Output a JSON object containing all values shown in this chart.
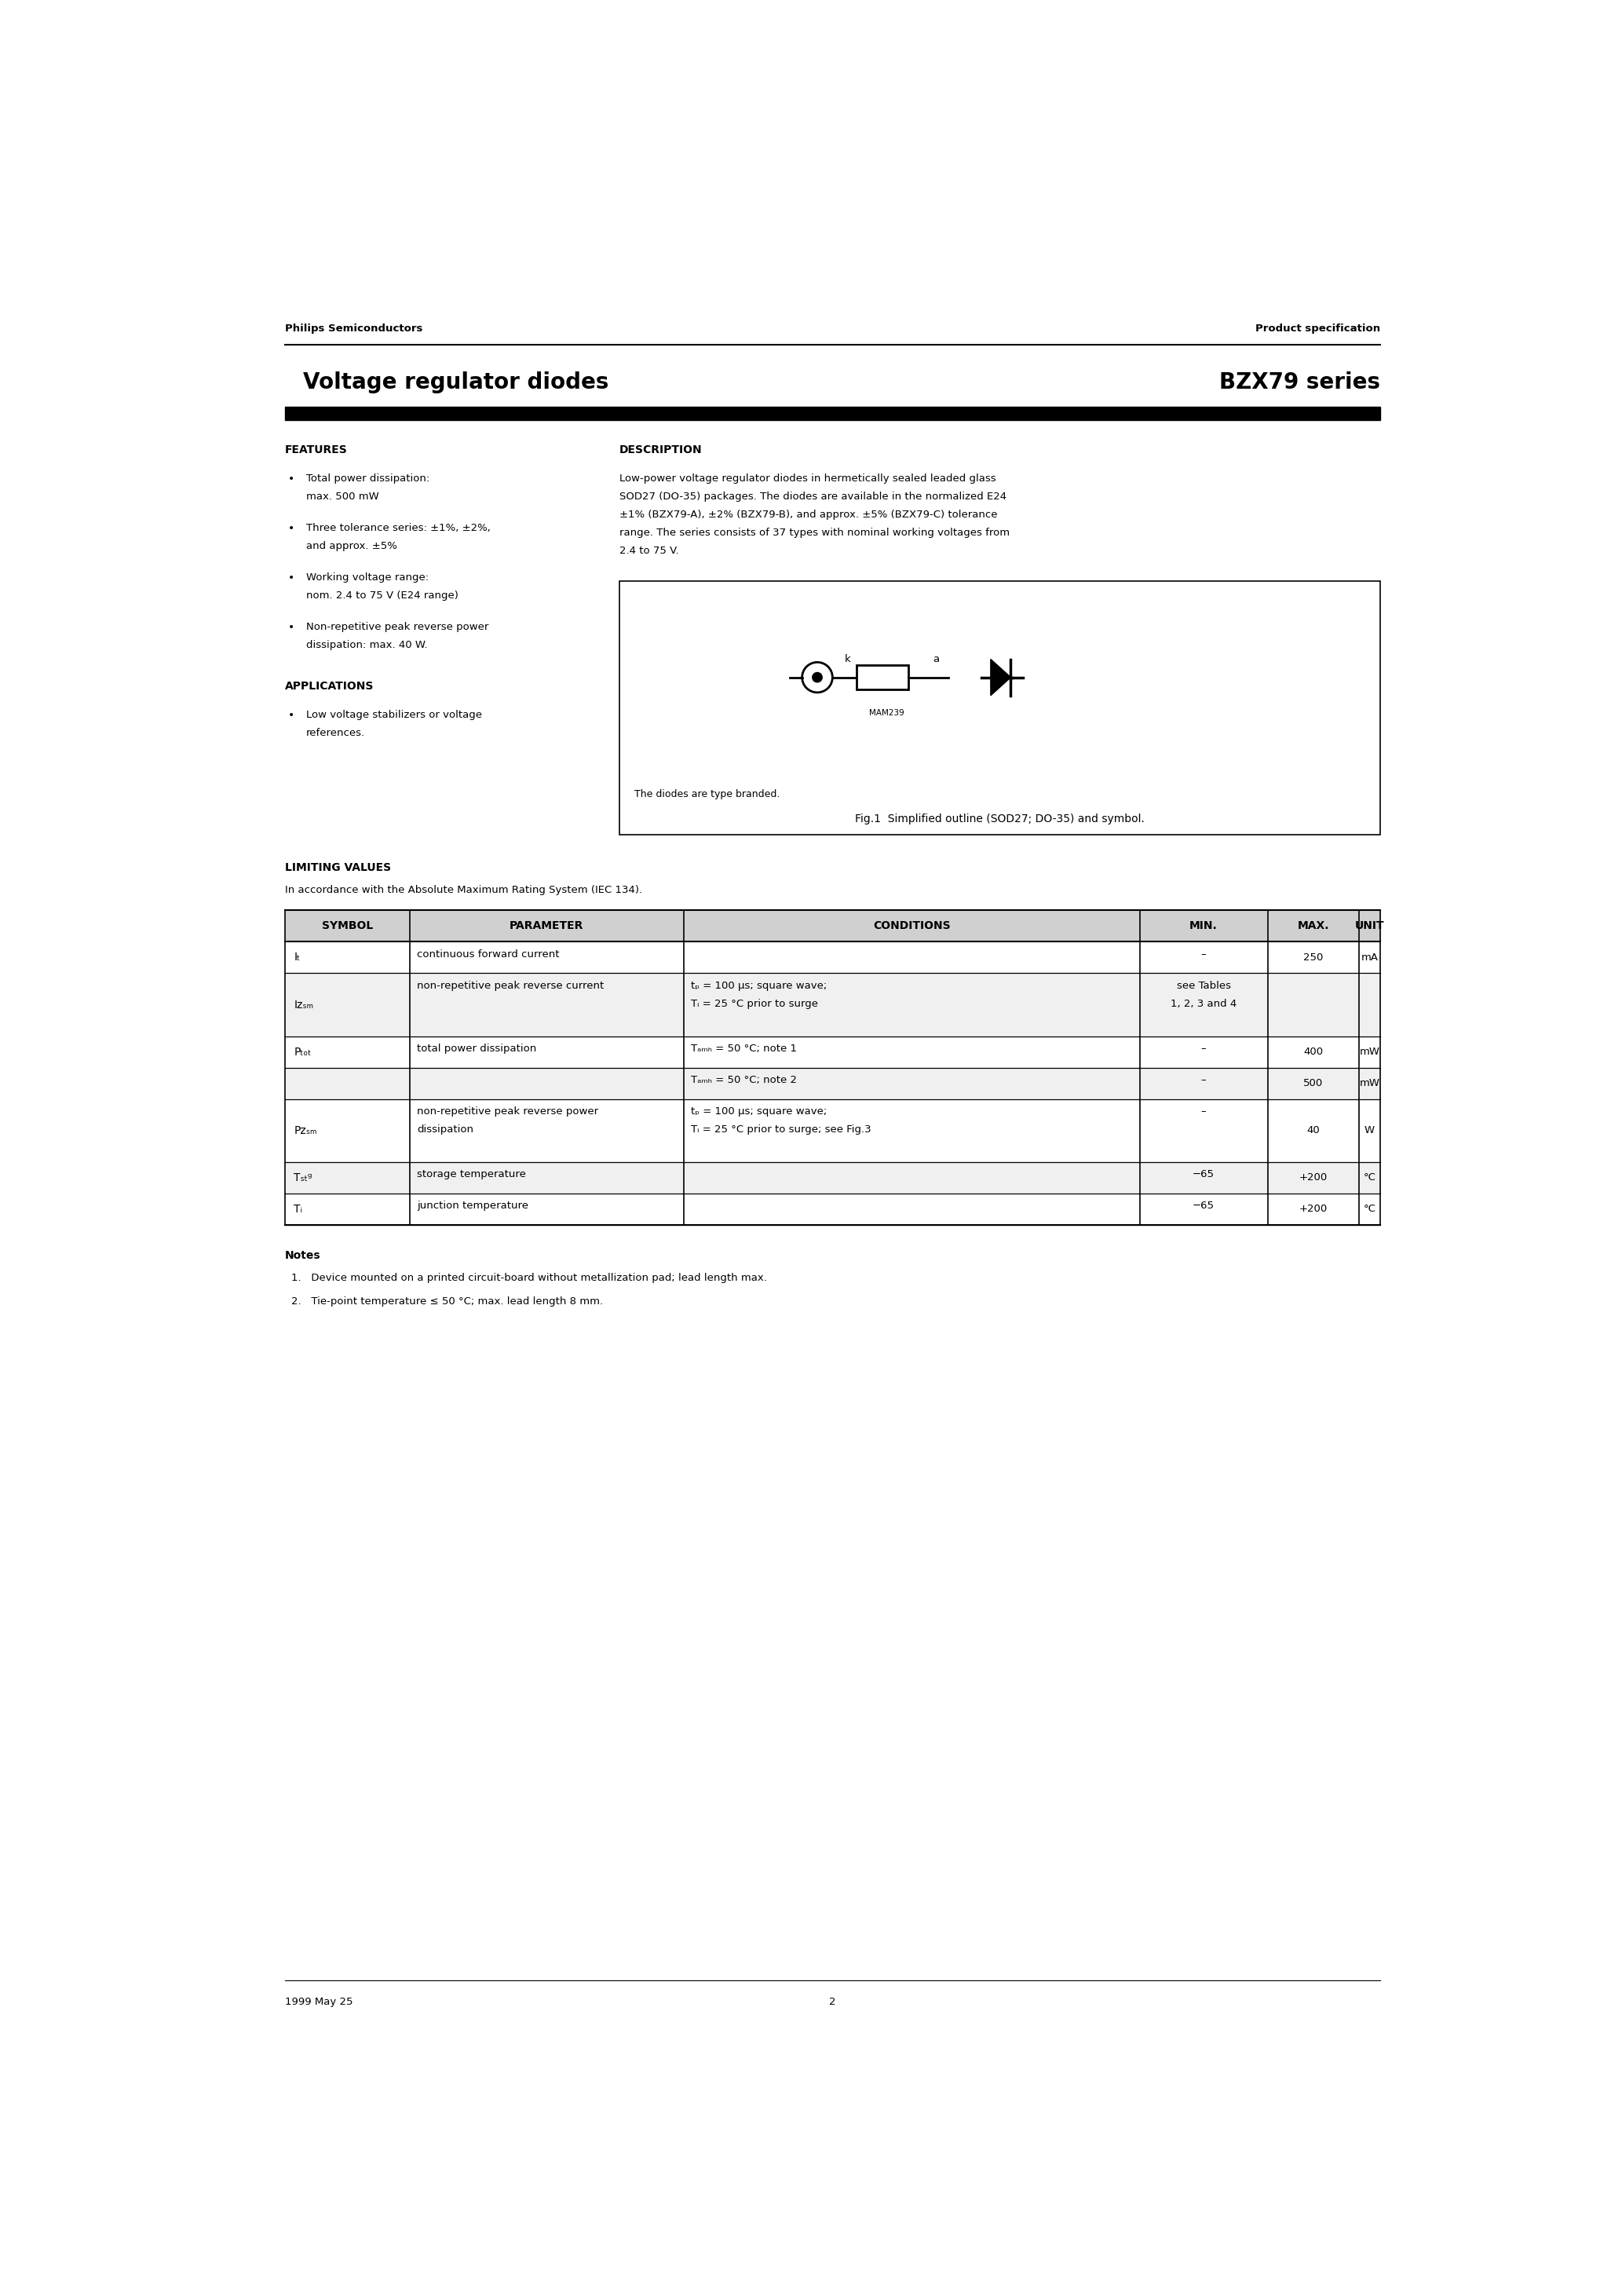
{
  "page_title_left": "Voltage regulator diodes",
  "page_title_right": "BZX79 series",
  "header_left": "Philips Semiconductors",
  "header_right": "Product specification",
  "features_title": "FEATURES",
  "features_bullets": [
    [
      "Total power dissipation:",
      "max. 500 mW"
    ],
    [
      "Three tolerance series: ±1%, ±2%,",
      "and approx. ±5%"
    ],
    [
      "Working voltage range:",
      "nom. 2.4 to 75 V (E24 range)"
    ],
    [
      "Non-repetitive peak reverse power",
      "dissipation: max. 40 W."
    ]
  ],
  "applications_title": "APPLICATIONS",
  "applications_bullets": [
    [
      "Low voltage stabilizers or voltage",
      "references."
    ]
  ],
  "description_title": "DESCRIPTION",
  "description_lines": [
    "Low-power voltage regulator diodes in hermetically sealed leaded glass",
    "SOD27 (DO-35) packages. The diodes are available in the normalized E24",
    "±1% (BZX79-A), ±2% (BZX79-B), and approx. ±5% (BZX79-C) tolerance",
    "range. The series consists of 37 types with nominal working voltages from",
    "2.4 to 75 V."
  ],
  "fig_caption": "The diodes are type branded.",
  "fig_title": "Fig.1  Simplified outline (SOD27; DO-35) and symbol.",
  "limiting_title": "LIMITING VALUES",
  "limiting_subtitle": "In accordance with the Absolute Maximum Rating System (IEC 134).",
  "table_headers": [
    "SYMBOL",
    "PARAMETER",
    "CONDITIONS",
    "MIN.",
    "MAX.",
    "UNIT"
  ],
  "notes_title": "Notes",
  "notes": [
    "1.   Device mounted on a printed circuit-board without metallization pad; lead length max.",
    "2.   Tie-point temperature ≤ 50 °C; max. lead length 8 mm."
  ],
  "footer_left": "1999 May 25",
  "footer_center": "2"
}
